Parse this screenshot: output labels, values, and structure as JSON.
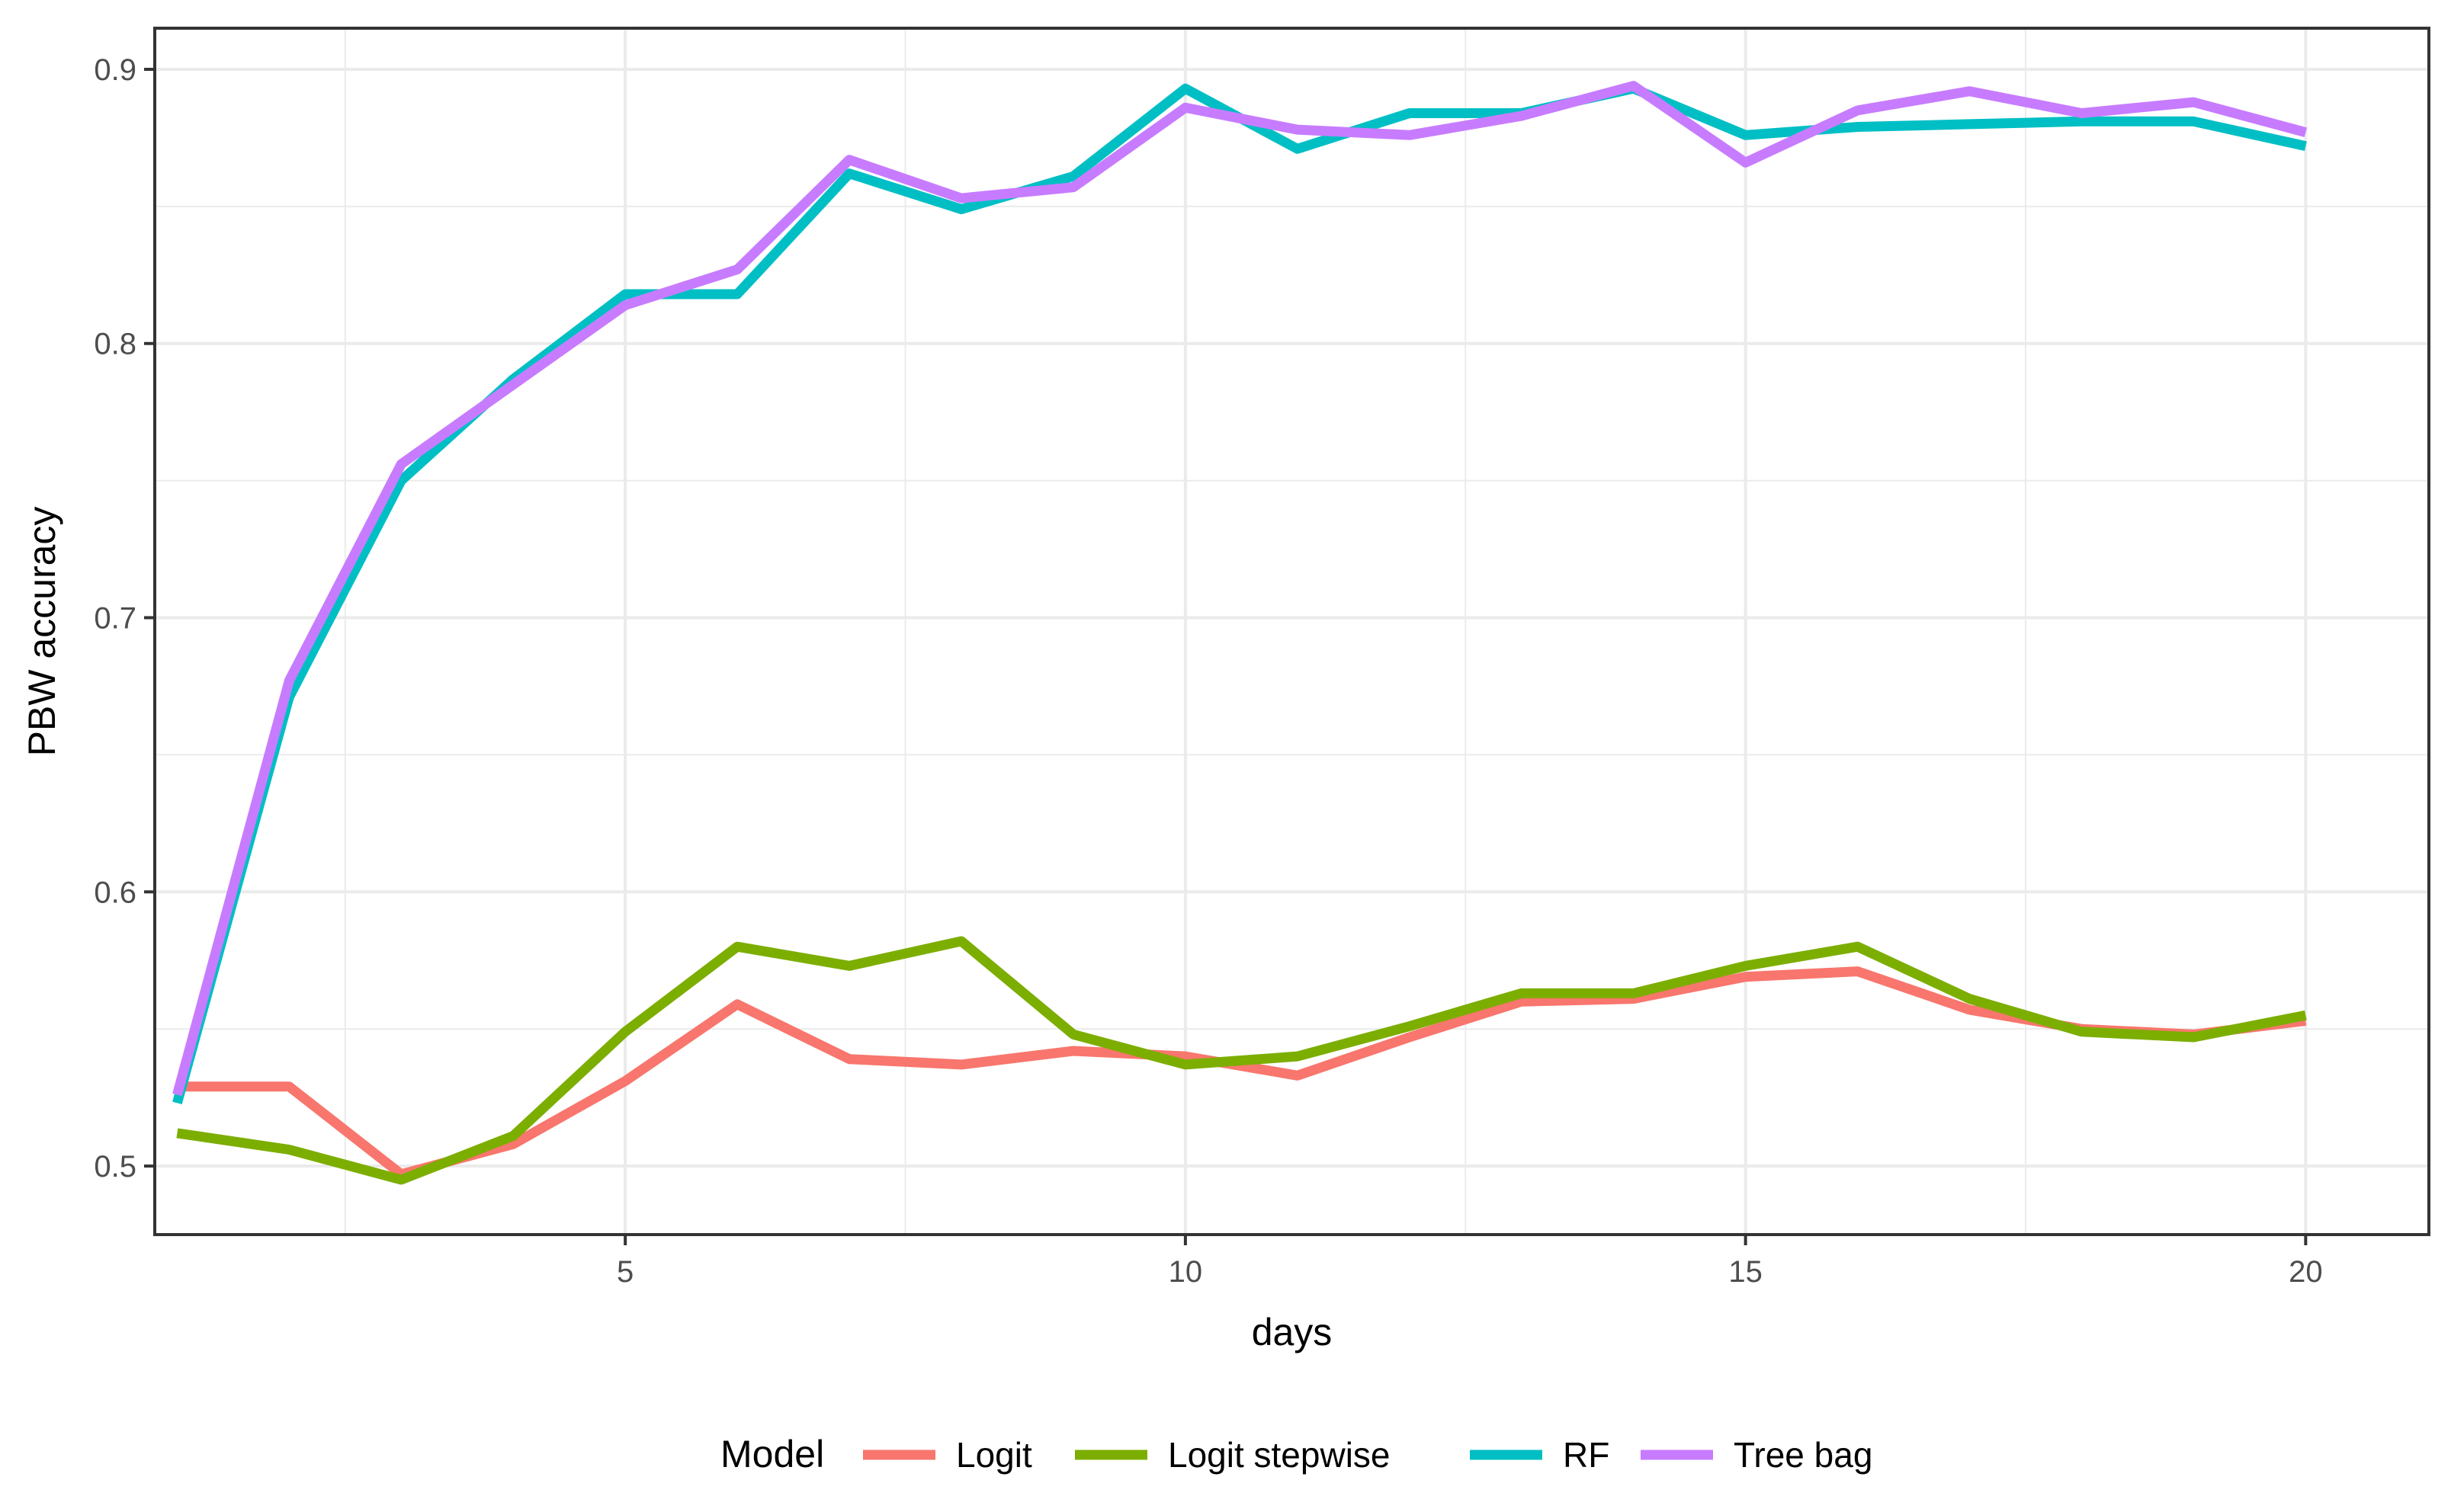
{
  "chart_data": {
    "type": "line",
    "xlabel": "days",
    "ylabel": "PBW accuracy",
    "xlim": [
      0.8,
      21.1
    ],
    "ylim": [
      0.475,
      0.915
    ],
    "x_ticks": [
      5,
      10,
      15,
      20
    ],
    "y_ticks": [
      0.5,
      0.6,
      0.7,
      0.8,
      0.9
    ],
    "x_tick_labels": [
      "5",
      "10",
      "15",
      "20"
    ],
    "y_tick_labels": [
      "0.5",
      "0.6",
      "0.7",
      "0.8",
      "0.9"
    ],
    "grid": true,
    "legend": {
      "title": "Model",
      "position": "bottom"
    },
    "x": [
      1,
      2,
      3,
      4,
      5,
      6,
      7,
      8,
      9,
      10,
      11,
      12,
      13,
      14,
      15,
      16,
      17,
      18,
      19,
      20
    ],
    "series": [
      {
        "name": "Logit",
        "color": "#F8766D",
        "values": [
          0.529,
          0.529,
          0.497,
          0.508,
          0.531,
          0.559,
          0.539,
          0.537,
          0.542,
          0.54,
          0.533,
          0.547,
          0.56,
          0.561,
          0.569,
          0.571,
          0.557,
          0.55,
          0.548,
          0.553
        ]
      },
      {
        "name": "Logit stepwise",
        "color": "#7CAE00",
        "values": [
          0.512,
          0.506,
          0.495,
          0.511,
          0.549,
          0.58,
          0.573,
          0.582,
          0.548,
          0.537,
          0.54,
          0.551,
          0.563,
          0.563,
          0.573,
          0.58,
          0.561,
          0.549,
          0.547,
          0.555
        ]
      },
      {
        "name": "RF",
        "color": "#00BFC4",
        "values": [
          0.523,
          0.671,
          0.75,
          0.787,
          0.818,
          0.818,
          0.862,
          0.849,
          0.861,
          0.893,
          0.871,
          0.884,
          0.884,
          0.893,
          0.876,
          0.879,
          0.88,
          0.881,
          0.881,
          0.872
        ]
      },
      {
        "name": "Tree bag",
        "color": "#C77CFF",
        "values": [
          0.526,
          0.677,
          0.756,
          0.785,
          0.814,
          0.827,
          0.867,
          0.853,
          0.857,
          0.886,
          0.878,
          0.876,
          0.883,
          0.894,
          0.866,
          0.885,
          0.892,
          0.884,
          0.888,
          0.877
        ]
      }
    ]
  }
}
